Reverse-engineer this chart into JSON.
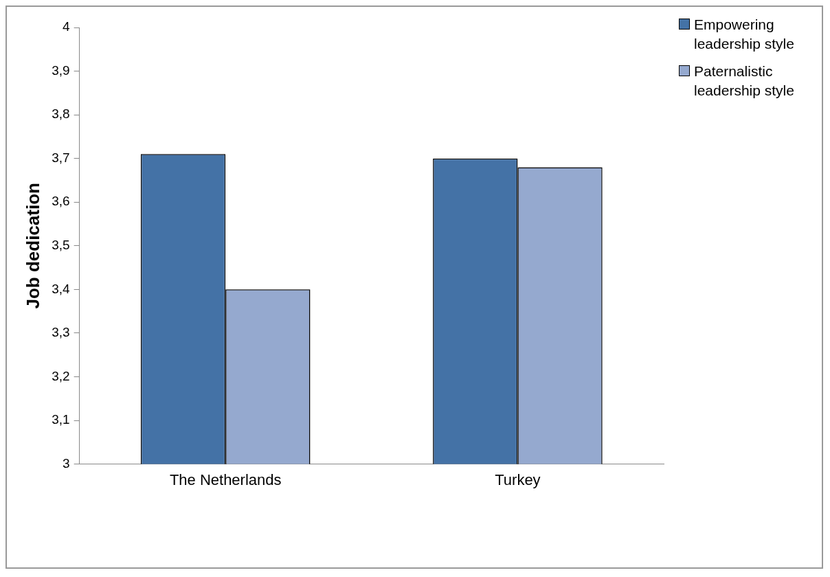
{
  "chart_data": {
    "type": "bar",
    "ylabel": "Job dedication",
    "categories": [
      "The Netherlands",
      "Turkey"
    ],
    "series": [
      {
        "name": "Empowering leadership style",
        "color": "#4472a6",
        "values": [
          3.71,
          3.7
        ]
      },
      {
        "name": "Paternalistic leadership style",
        "color": "#95a9cf",
        "values": [
          3.4,
          3.68
        ]
      }
    ],
    "ylim": [
      3,
      4
    ],
    "yticks": [
      {
        "value": 3,
        "label": "3"
      },
      {
        "value": 3.1,
        "label": "3,1"
      },
      {
        "value": 3.2,
        "label": "3,2"
      },
      {
        "value": 3.3,
        "label": "3,3"
      },
      {
        "value": 3.4,
        "label": "3,4"
      },
      {
        "value": 3.5,
        "label": "3,5"
      },
      {
        "value": 3.6,
        "label": "3,6"
      },
      {
        "value": 3.7,
        "label": "3,7"
      },
      {
        "value": 3.8,
        "label": "3,8"
      },
      {
        "value": 3.9,
        "label": "3,9"
      },
      {
        "value": 4,
        "label": "4"
      }
    ],
    "grid": false,
    "legend": "top right"
  }
}
